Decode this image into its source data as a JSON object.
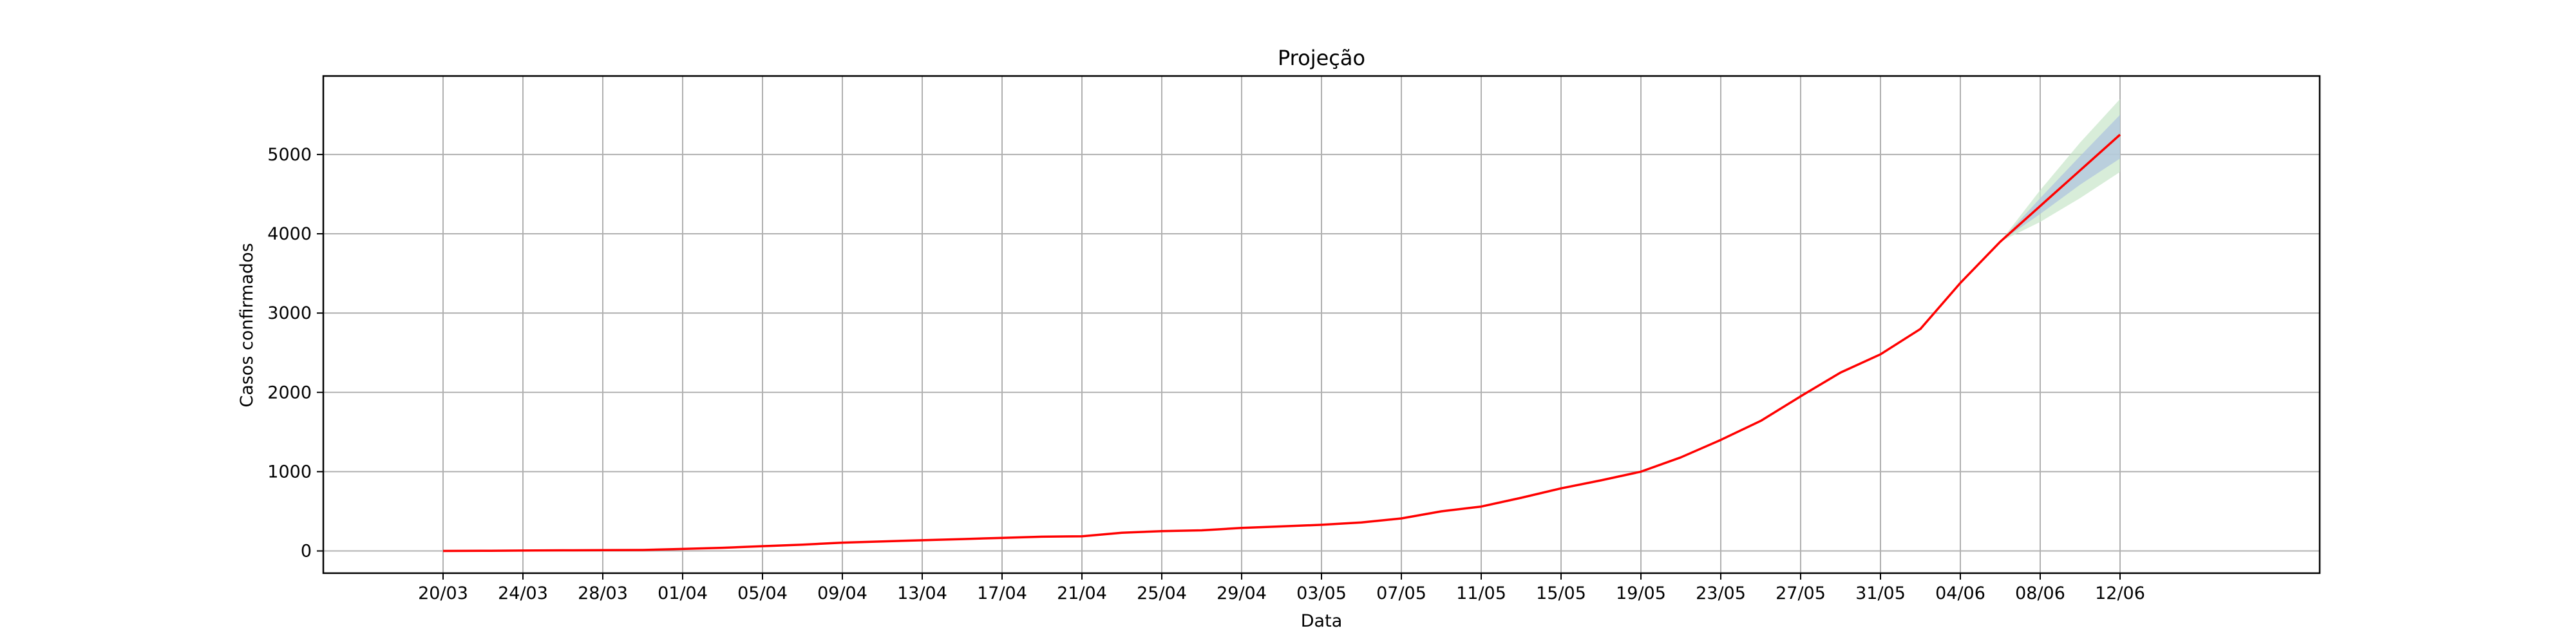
{
  "chart_data": {
    "type": "line",
    "title": "Projeção",
    "xlabel": "Data",
    "ylabel": "Casos confirmados",
    "xlim": [
      "2020-03-14",
      "2020-06-22"
    ],
    "ylim": [
      -280,
      5990
    ],
    "grid": true,
    "legend": "none",
    "x_ticks": [
      "20/03",
      "24/03",
      "28/03",
      "01/04",
      "05/04",
      "09/04",
      "13/04",
      "17/04",
      "21/04",
      "25/04",
      "29/04",
      "03/05",
      "07/05",
      "11/05",
      "15/05",
      "19/05",
      "23/05",
      "27/05",
      "31/05",
      "04/06",
      "08/06",
      "12/06"
    ],
    "y_ticks": [
      0,
      1000,
      2000,
      3000,
      4000,
      5000
    ],
    "colors": {
      "line": "#ff0000",
      "band_inner": "#b0c4de",
      "band_outer": "#c8e6c9",
      "grid": "#b0b0b0"
    },
    "series": [
      {
        "x": [
          "2020-03-20",
          "2020-03-22",
          "2020-03-24",
          "2020-03-26",
          "2020-03-28",
          "2020-03-30",
          "2020-04-01",
          "2020-04-03",
          "2020-04-05",
          "2020-04-07",
          "2020-04-09",
          "2020-04-11",
          "2020-04-13",
          "2020-04-15",
          "2020-04-17",
          "2020-04-19",
          "2020-04-21",
          "2020-04-23",
          "2020-04-25",
          "2020-04-27",
          "2020-04-29",
          "2020-05-01",
          "2020-05-03",
          "2020-05-05",
          "2020-05-07",
          "2020-05-09",
          "2020-05-11",
          "2020-05-13",
          "2020-05-15",
          "2020-05-17",
          "2020-05-19",
          "2020-05-21",
          "2020-05-23",
          "2020-05-25",
          "2020-05-27",
          "2020-05-29",
          "2020-05-31",
          "2020-06-02",
          "2020-06-04",
          "2020-06-06",
          "2020-06-08",
          "2020-06-10",
          "2020-06-12"
        ],
        "values": [
          0,
          2,
          5,
          8,
          10,
          12,
          25,
          40,
          60,
          80,
          105,
          120,
          135,
          150,
          165,
          180,
          185,
          230,
          250,
          260,
          290,
          310,
          330,
          360,
          410,
          500,
          560,
          670,
          790,
          890,
          1000,
          1180,
          1400,
          1640,
          1950,
          2250,
          2480,
          2800,
          3380,
          3900,
          4350,
          4800,
          5250
        ]
      }
    ],
    "projection_band": {
      "x": [
        "2020-06-06",
        "2020-06-08",
        "2020-06-10",
        "2020-06-12"
      ],
      "inner_low": [
        3900,
        4250,
        4620,
        4950
      ],
      "inner_high": [
        3900,
        4450,
        4980,
        5500
      ],
      "outer_low": [
        3900,
        4150,
        4450,
        4780
      ],
      "outer_high": [
        3900,
        4550,
        5150,
        5700
      ]
    }
  }
}
